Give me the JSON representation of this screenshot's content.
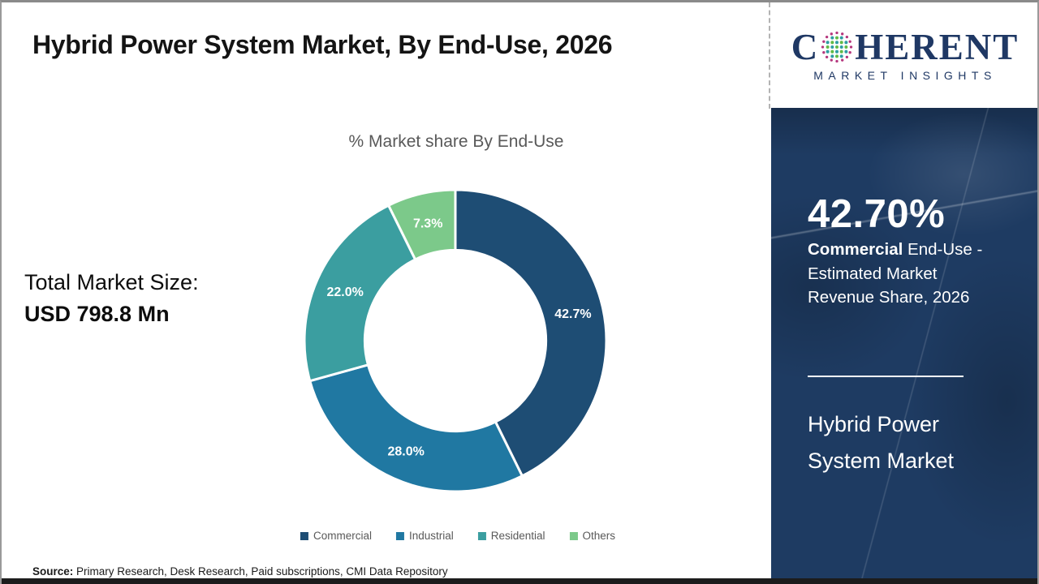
{
  "header": {
    "title": "Hybrid Power System Market, By End-Use, 2026"
  },
  "brand": {
    "mark_c": "C",
    "mark_rest": "HERENT",
    "subtitle": "MARKET INSIGHTS",
    "navy": "#1f3864",
    "globe_colors": {
      "outer_ring": "#b5367d",
      "dot_green": "#62bb46",
      "dot_teal": "#2f9ea2"
    }
  },
  "chart_data": {
    "type": "pie",
    "subtype": "donut",
    "title": "% Market share By End-Use",
    "categories": [
      "Commercial",
      "Industrial",
      "Residential",
      "Others"
    ],
    "values": [
      42.7,
      28.0,
      22.0,
      7.3
    ],
    "labels": [
      "42.7%",
      "28.0%",
      "22.0%",
      "7.3%"
    ],
    "colors": [
      "#1e4d74",
      "#2078a2",
      "#3b9ea0",
      "#7cc98a"
    ],
    "start_angle": -90,
    "direction": "clockwise",
    "donut_hole_ratio": 0.6,
    "legend_position": "bottom",
    "slice_label_color": "#ffffff",
    "slice_gap_color": "#ffffff"
  },
  "left_panel": {
    "label": "Total Market Size:",
    "value": "USD 798.8 Mn"
  },
  "sidebar": {
    "background": "#1e3b62",
    "stat": "42.70%",
    "desc_bold": "Commercial",
    "desc_rest": " End-Use - Estimated Market Revenue Share, 2026",
    "product": "Hybrid Power System Market"
  },
  "footer": {
    "source_label": "Source:",
    "source_text": " Primary Research, Desk Research, Paid subscriptions, CMI Data Repository"
  }
}
